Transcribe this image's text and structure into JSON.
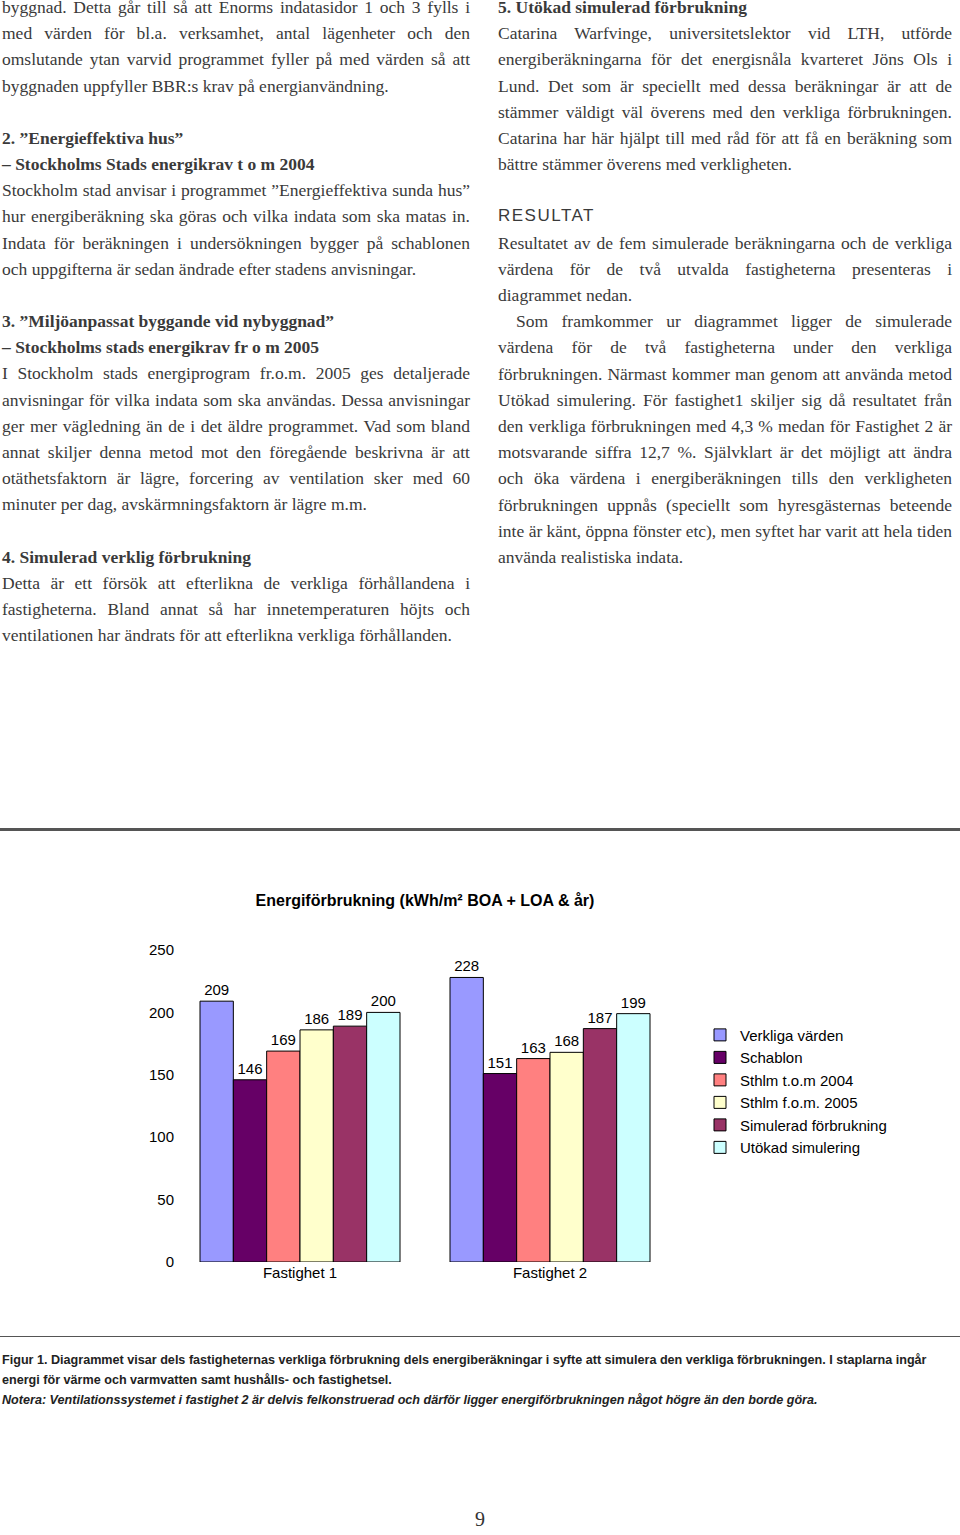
{
  "document": {
    "left_column": [
      {
        "paragraphs": [
          "byggnad. Detta går till så att Enorms indatasidor 1 och 3 fylls i med värden för bl.a. verksamhet, antal lägenheter och den omslutande ytan varvid programmet fyller på med värden så att byggnaden uppfyller BBR:s krav på energianvändning."
        ]
      },
      {
        "heading": "2. ”Energieffektiva hus”",
        "subheading": "– Stockholms Stads energikrav t o m 2004",
        "paragraphs": [
          "Stockholm stad anvisar i programmet ”Energieffektiva sunda hus” hur energiberäkning ska göras och vilka indata som ska matas in. Indata för beräkningen i undersökningen bygger på schablonen och uppgifterna är sedan ändrade efter stadens anvisningar."
        ]
      },
      {
        "heading": "3. ”Miljöanpassat byggande vid nybyggnad”",
        "subheading": "– Stockholms stads energikrav fr o m 2005",
        "paragraphs": [
          "I Stockholm stads energiprogram fr.o.m. 2005 ges detaljerade anvisningar för vilka indata som ska användas. Dessa anvisningar ger mer vägledning än de i det äldre programmet. Vad som bland annat skiljer denna metod mot den föregående beskrivna är att otäthetsfaktorn är lägre, forcering av ventilation sker med 60 minuter per dag, avskärmningsfaktorn är lägre m.m."
        ]
      },
      {
        "heading": "4. Simulerad verklig förbrukning",
        "paragraphs": [
          "Detta är ett försök att efterlikna de verkliga förhållandena i fastigheterna. Bland annat så har innetemperaturen höjts och ventilationen har ändrats för att efterlikna verkliga förhållanden."
        ]
      }
    ],
    "right_column": [
      {
        "heading": "5. Utökad simulerad förbrukning",
        "paragraphs": [
          "Catarina Warfvinge, universitetslektor vid LTH, utförde energiberäkningarna för det energisnåla kvarteret Jöns Ols i Lund. Det som är speciellt med dessa beräkningar är att de stämmer väldigt väl överens med den verkliga förbrukningen. Catarina har här hjälpt till med råd för att få en beräkning som bättre stämmer överens med verkligheten."
        ]
      }
    ],
    "result": {
      "heading": "RESULTAT",
      "paragraphs": [
        "Resultatet av de fem simulerade beräkningarna och de verkliga värdena för de två utvalda fastigheterna presenteras i diagrammet nedan.",
        "Som framkommer ur diagrammet ligger de simulerade värdena för de två fastigheterna under den verkliga förbrukningen. Närmast kommer man genom att använda metod Utökad simulering. För fastighet1 skiljer sig då resultatet från den verkliga förbrukningen med 4,3 % medan för Fastighet 2 är motsvarande siffra 12,7 %. Självklart är det möjligt att ändra och öka värdena i energiberäkningen tills den verkligheten förbrukningen uppnås (speciellt som hyresgästernas beteende inte är känt, öppna fönster etc), men syftet har varit att hela tiden använda realistiska indata."
      ]
    },
    "caption": {
      "text": "Figur 1. Diagrammet visar dels fastigheternas verkliga förbrukning dels energiberäkningar i syfte att simulera den verkliga förbrukningen. I staplarna ingår energi för värme och varmvatten samt hushålls- och fastighetsel.",
      "note": "Notera: Ventilationssystemet i fastighet 2 är delvis felkonstruerad och därför ligger energiförbrukningen något högre än den borde göra."
    },
    "page_number": 9
  },
  "chart_data": {
    "type": "bar",
    "title": "Energiförbrukning (kWh/m² BOA + LOA & år)",
    "categories": [
      "Fastighet 1",
      "Fastighet 2"
    ],
    "series": [
      {
        "name": "Verkliga värden",
        "color": "#9999ff",
        "values": [
          209,
          228
        ]
      },
      {
        "name": "Schablon",
        "color": "#660066",
        "values": [
          146,
          151
        ]
      },
      {
        "name": "Sthlm t.o.m 2004",
        "color": "#ff8080",
        "values": [
          169,
          163
        ]
      },
      {
        "name": "Sthlm f.o.m. 2005",
        "color": "#ffffcc",
        "values": [
          186,
          168
        ]
      },
      {
        "name": "Simulerad förbrukning",
        "color": "#993366",
        "values": [
          189,
          187
        ]
      },
      {
        "name": "Utökad simulering",
        "color": "#ccffff",
        "values": [
          200,
          199
        ]
      }
    ],
    "ylim": [
      0,
      250
    ],
    "yticks": [
      0,
      50,
      100,
      150,
      200,
      250
    ],
    "grid": false,
    "legend": "right",
    "data_labels": true
  }
}
